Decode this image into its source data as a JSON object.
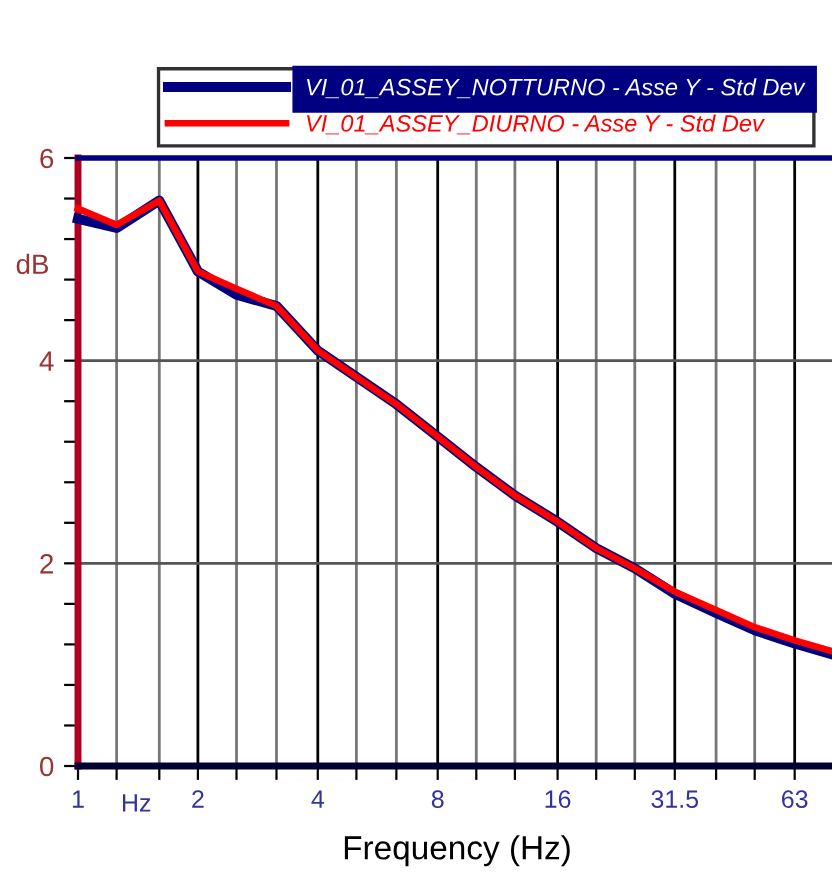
{
  "chart_data": {
    "type": "line",
    "xlabel": "Frequency (Hz)",
    "ylabel": "dB",
    "log": "x",
    "grid": true,
    "legend": "top",
    "line_style": "solid",
    "marker": "none",
    "x": [
      1,
      1.25,
      1.6,
      2,
      2.5,
      3.15,
      4,
      5,
      6.3,
      8,
      10,
      12.5,
      16,
      20,
      25,
      31.5,
      40,
      50,
      63,
      80
    ],
    "series": [
      {
        "name": "VI_01_ASSEY_NOTTURNO - Asse Y - Std Dev",
        "color": "#000080",
        "values": [
          5.4,
          5.31,
          5.58,
          4.88,
          4.65,
          4.54,
          4.1,
          3.84,
          3.57,
          3.25,
          2.95,
          2.67,
          2.41,
          2.15,
          1.95,
          1.7,
          1.51,
          1.34,
          1.21,
          1.09
        ]
      },
      {
        "name": "VI_01_ASSEY_DIURNO - Asse Y - Std Dev",
        "color": "#ff0000",
        "values": [
          5.5,
          5.34,
          5.58,
          4.88,
          4.71,
          4.54,
          4.1,
          3.84,
          3.57,
          3.25,
          2.95,
          2.67,
          2.41,
          2.15,
          1.95,
          1.72,
          1.54,
          1.37,
          1.24,
          1.12
        ]
      }
    ],
    "xlim": [
      1,
      80
    ],
    "xticks": [
      1,
      {
        "value": 1.25,
        "label": null
      },
      {
        "value": 1.6,
        "label": null
      },
      2,
      {
        "value": 2.5,
        "label": null
      },
      {
        "value": 3.15,
        "label": null
      },
      4,
      {
        "value": 5,
        "label": null
      },
      {
        "value": 6.3,
        "label": null
      },
      8,
      {
        "value": 10,
        "label": null
      },
      {
        "value": 12.5,
        "label": null
      },
      16,
      {
        "value": 20,
        "label": null
      },
      {
        "value": 25,
        "label": null
      },
      31.5,
      {
        "value": 40,
        "label": null
      },
      {
        "value": 50,
        "label": null
      },
      63,
      {
        "value": 80,
        "label": null
      }
    ],
    "ylim": [
      0,
      6
    ],
    "yticks": [
      0,
      {
        "value": 0.4,
        "label": null
      },
      {
        "value": 0.8,
        "label": null
      },
      {
        "value": 1.2,
        "label": null
      },
      {
        "value": 1.6,
        "label": null
      },
      2,
      {
        "value": 2.4,
        "label": null
      },
      {
        "value": 2.8,
        "label": null
      },
      {
        "value": 3.2,
        "label": null
      },
      {
        "value": 3.6,
        "label": null
      },
      4,
      {
        "value": 4.4,
        "label": null
      },
      {
        "value": 4.8,
        "label": null
      },
      {
        "value": 5.2,
        "label": null
      },
      {
        "value": 5.6,
        "label": null
      },
      6
    ],
    "annotations": [
      "Hz"
    ]
  }
}
